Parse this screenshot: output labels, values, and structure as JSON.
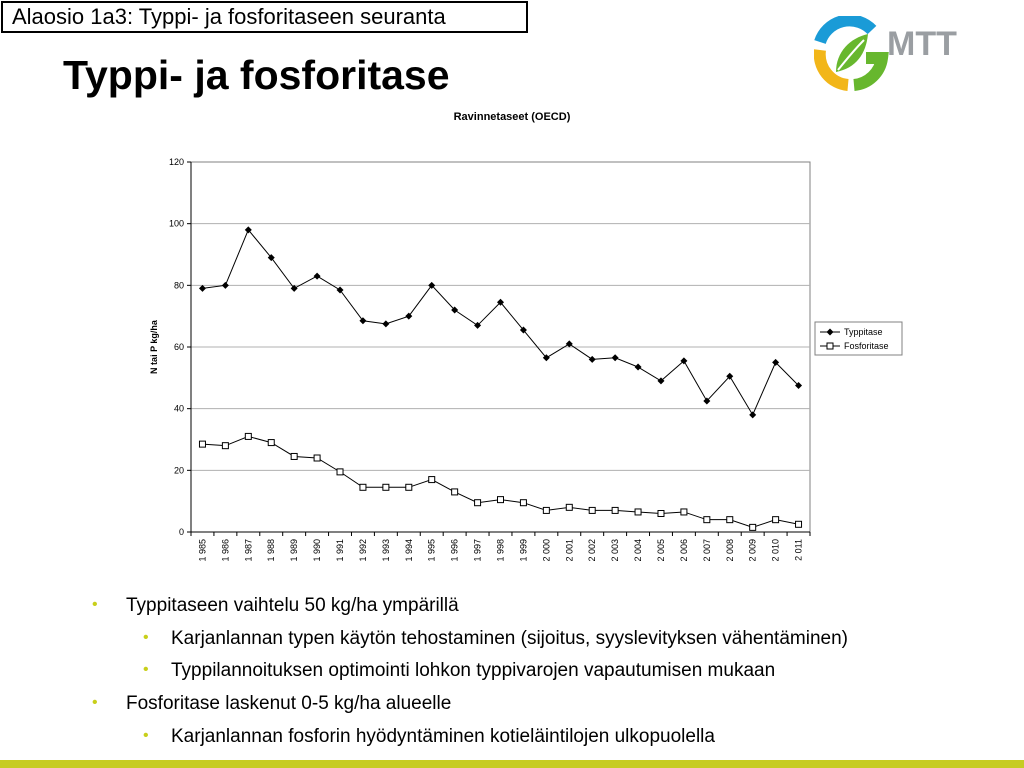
{
  "section_label": "Alaosio 1a3: Typpi- ja fosforitaseen seuranta",
  "slide_title": "Typpi- ja fosforitase",
  "logo": {
    "text": "MTT",
    "icon": "mtt-leaf-logo-icon",
    "colors": [
      "#1a9bd7",
      "#f2b619",
      "#67b72e"
    ]
  },
  "chart_data": {
    "type": "line",
    "title": "Ravinnetaseet (OECD)",
    "ylabel": "N tai P kg/ha",
    "xlabel": "",
    "ylim": [
      0,
      120
    ],
    "yticks": [
      0,
      20,
      40,
      60,
      80,
      100,
      120
    ],
    "grid": true,
    "legend": "right",
    "categories": [
      "1 985",
      "1 986",
      "1 987",
      "1 988",
      "1 989",
      "1 990",
      "1 991",
      "1 992",
      "1 993",
      "1 994",
      "1 995",
      "1 996",
      "1 997",
      "1 998",
      "1 999",
      "2 000",
      "2 001",
      "2 002",
      "2 003",
      "2 004",
      "2 005",
      "2 006",
      "2 007",
      "2 008",
      "2 009",
      "2 010",
      "2 011"
    ],
    "series": [
      {
        "name": "Typpitase",
        "marker": "diamond-filled",
        "color": "#000000",
        "values": [
          79,
          80,
          98,
          89,
          79,
          83,
          78.5,
          68.5,
          67.5,
          70,
          80,
          72,
          67,
          74.5,
          65.5,
          56.5,
          61,
          56,
          56.5,
          53.5,
          49,
          55.5,
          42.5,
          50.5,
          38,
          55,
          47.5
        ]
      },
      {
        "name": "Fosforitase",
        "marker": "square-open",
        "color": "#000000",
        "values": [
          28.5,
          28,
          31,
          29,
          24.5,
          24,
          19.5,
          14.5,
          14.5,
          14.5,
          17,
          13,
          9.5,
          10.5,
          9.5,
          7,
          8,
          7,
          7,
          6.5,
          6,
          6.5,
          4,
          4,
          1.5,
          4,
          2.5
        ]
      }
    ]
  },
  "bullets": [
    {
      "level": 1,
      "text": "Typpitaseen vaihtelu 50 kg/ha ympärillä"
    },
    {
      "level": 2,
      "text": "Karjanlannan typen käytön tehostaminen (sijoitus, syyslevityksen vähentäminen)"
    },
    {
      "level": 2,
      "text": "Typpilannoituksen optimointi lohkon typpivarojen vapautumisen mukaan"
    },
    {
      "level": 1,
      "text": "Fosforitase laskenut 0-5 kg/ha alueelle"
    },
    {
      "level": 2,
      "text": "Karjanlannan fosforin hyödyntäminen kotieläintilojen ulkopuolella"
    }
  ],
  "bullet_glyph": "•",
  "accent_color": "#c6cc23"
}
